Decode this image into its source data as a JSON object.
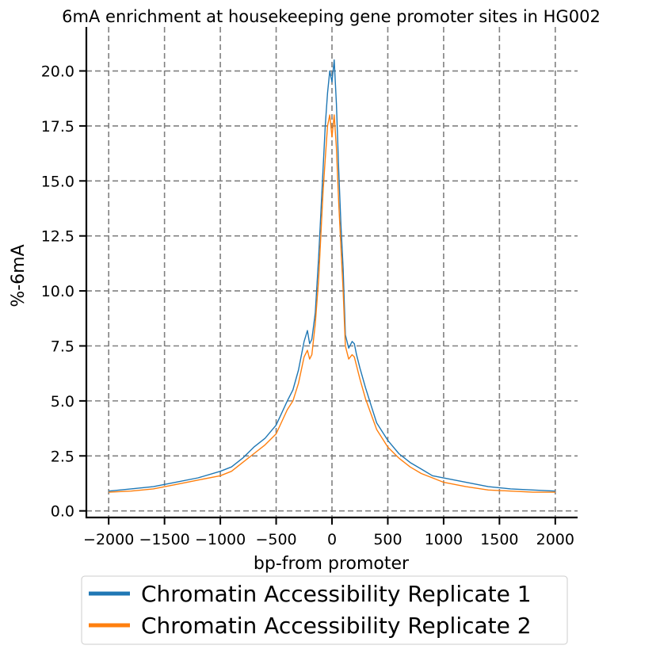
{
  "chart_data": {
    "type": "line",
    "title": "6mA enrichment at housekeeping gene promoter sites in HG002",
    "xlabel": "bp-from promoter",
    "ylabel": "%-6mA",
    "xlim": [
      -2200,
      2200
    ],
    "ylim": [
      -0.3,
      22.0
    ],
    "xticks": [
      -2000,
      -1500,
      -1000,
      -500,
      0,
      500,
      1000,
      1500,
      2000
    ],
    "xtick_labels": [
      "−2000",
      "−1500",
      "−1000",
      "−500",
      "0",
      "500",
      "1000",
      "1500",
      "2000"
    ],
    "yticks": [
      0.0,
      2.5,
      5.0,
      7.5,
      10.0,
      12.5,
      15.0,
      17.5,
      20.0
    ],
    "ytick_labels": [
      "0.0",
      "2.5",
      "5.0",
      "7.5",
      "10.0",
      "12.5",
      "15.0",
      "17.5",
      "20.0"
    ],
    "grid": true,
    "grid_style": "dashed",
    "legend_position": "below",
    "series": [
      {
        "name": "Chromatin Accessibility Replicate 1",
        "color": "#1f77b4",
        "x": [
          -2000,
          -1800,
          -1600,
          -1400,
          -1200,
          -1000,
          -900,
          -800,
          -700,
          -600,
          -500,
          -400,
          -350,
          -300,
          -250,
          -220,
          -200,
          -180,
          -150,
          -120,
          -100,
          -80,
          -60,
          -40,
          -20,
          0,
          20,
          40,
          60,
          80,
          100,
          120,
          150,
          180,
          200,
          220,
          250,
          300,
          350,
          400,
          500,
          600,
          700,
          800,
          900,
          1000,
          1200,
          1400,
          1600,
          1800,
          2000
        ],
        "y": [
          0.9,
          1.0,
          1.1,
          1.3,
          1.5,
          1.8,
          2.0,
          2.4,
          2.9,
          3.3,
          3.9,
          5.0,
          5.5,
          6.4,
          7.7,
          8.2,
          7.6,
          7.8,
          9.0,
          11.5,
          13.5,
          15.5,
          17.5,
          19.0,
          20.0,
          19.5,
          20.5,
          18.5,
          15.5,
          13.0,
          11.0,
          8.0,
          7.4,
          7.7,
          7.6,
          7.1,
          6.5,
          5.6,
          4.8,
          4.0,
          3.2,
          2.6,
          2.2,
          1.9,
          1.6,
          1.5,
          1.3,
          1.1,
          1.0,
          0.95,
          0.9
        ]
      },
      {
        "name": "Chromatin Accessibility Replicate 2",
        "color": "#ff7f0e",
        "x": [
          -2000,
          -1800,
          -1600,
          -1400,
          -1200,
          -1000,
          -900,
          -800,
          -700,
          -600,
          -500,
          -400,
          -350,
          -300,
          -250,
          -220,
          -200,
          -180,
          -150,
          -120,
          -100,
          -80,
          -60,
          -40,
          -20,
          0,
          20,
          40,
          60,
          80,
          100,
          120,
          150,
          180,
          200,
          220,
          250,
          300,
          350,
          400,
          500,
          600,
          700,
          800,
          900,
          1000,
          1200,
          1400,
          1600,
          1800,
          2000
        ],
        "y": [
          0.85,
          0.9,
          1.0,
          1.2,
          1.4,
          1.6,
          1.8,
          2.2,
          2.6,
          3.0,
          3.5,
          4.6,
          5.0,
          5.8,
          7.0,
          7.3,
          6.9,
          7.1,
          8.5,
          10.5,
          12.5,
          14.5,
          16.0,
          17.5,
          18.0,
          17.0,
          18.0,
          16.5,
          14.0,
          12.0,
          10.0,
          7.5,
          6.9,
          7.1,
          7.0,
          6.6,
          6.0,
          5.1,
          4.4,
          3.7,
          2.9,
          2.4,
          2.0,
          1.7,
          1.5,
          1.3,
          1.1,
          0.95,
          0.9,
          0.85,
          0.85
        ]
      }
    ]
  }
}
